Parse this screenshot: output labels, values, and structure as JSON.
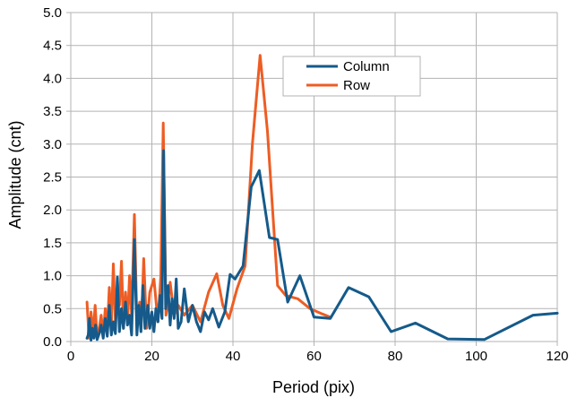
{
  "chart_data": {
    "type": "line",
    "title": "",
    "xlabel": "Period (pix)",
    "ylabel": "Amplitude (cnt)",
    "xlim": [
      0,
      120
    ],
    "ylim": [
      0,
      5
    ],
    "xticks": [
      0,
      20,
      40,
      60,
      80,
      100,
      120
    ],
    "xtick_labels": [
      "0",
      "20",
      "40",
      "60",
      "80",
      "100",
      "120"
    ],
    "yticks": [
      0,
      0.5,
      1,
      1.5,
      2,
      2.5,
      3,
      3.5,
      4,
      4.5,
      5
    ],
    "ytick_labels": [
      "0.0",
      "0.5",
      "1.0",
      "1.5",
      "2.0",
      "2.5",
      "3.0",
      "3.5",
      "4.0",
      "4.5",
      "5.0"
    ],
    "grid": true,
    "legend": {
      "position": "top-right"
    },
    "series": [
      {
        "name": "Column",
        "color": "#155a8a",
        "points": [
          [
            4.0,
            0.05
          ],
          [
            4.3,
            0.1
          ],
          [
            4.6,
            0.35
          ],
          [
            5.0,
            0.02
          ],
          [
            5.3,
            0.2
          ],
          [
            5.7,
            0.05
          ],
          [
            6.1,
            0.25
          ],
          [
            6.5,
            0.03
          ],
          [
            7.0,
            0.12
          ],
          [
            7.5,
            0.25
          ],
          [
            8.0,
            0.05
          ],
          [
            8.5,
            0.35
          ],
          [
            9.0,
            0.08
          ],
          [
            9.5,
            0.55
          ],
          [
            10.0,
            0.1
          ],
          [
            10.5,
            0.3
          ],
          [
            11.0,
            0.12
          ],
          [
            11.5,
            0.98
          ],
          [
            12.0,
            0.15
          ],
          [
            12.5,
            0.5
          ],
          [
            13.0,
            0.2
          ],
          [
            13.5,
            0.6
          ],
          [
            14.0,
            0.25
          ],
          [
            14.5,
            0.4
          ],
          [
            15.0,
            0.1
          ],
          [
            15.7,
            1.55
          ],
          [
            16.3,
            0.1
          ],
          [
            16.8,
            0.55
          ],
          [
            17.3,
            0.15
          ],
          [
            17.8,
            0.85
          ],
          [
            18.3,
            0.2
          ],
          [
            19.0,
            0.55
          ],
          [
            19.5,
            0.2
          ],
          [
            20.0,
            0.45
          ],
          [
            20.5,
            0.15
          ],
          [
            21.0,
            0.5
          ],
          [
            21.5,
            0.3
          ],
          [
            22.0,
            0.7
          ],
          [
            22.5,
            0.35
          ],
          [
            22.9,
            2.9
          ],
          [
            23.4,
            0.5
          ],
          [
            24.0,
            0.85
          ],
          [
            24.5,
            0.25
          ],
          [
            25.0,
            0.65
          ],
          [
            25.5,
            0.35
          ],
          [
            26.0,
            0.95
          ],
          [
            26.5,
            0.2
          ],
          [
            27.2,
            0.3
          ],
          [
            28.0,
            0.8
          ],
          [
            29.0,
            0.3
          ],
          [
            30.0,
            0.55
          ],
          [
            31.0,
            0.3
          ],
          [
            32.0,
            0.15
          ],
          [
            33.0,
            0.45
          ],
          [
            34.0,
            0.33
          ],
          [
            35.0,
            0.5
          ],
          [
            36.5,
            0.22
          ],
          [
            38.0,
            0.45
          ],
          [
            39.3,
            1.02
          ],
          [
            40.5,
            0.95
          ],
          [
            42.5,
            1.15
          ],
          [
            44.5,
            2.35
          ],
          [
            46.5,
            2.6
          ],
          [
            49.0,
            1.58
          ],
          [
            51.0,
            1.55
          ],
          [
            53.5,
            0.6
          ],
          [
            56.5,
            1.0
          ],
          [
            60.0,
            0.37
          ],
          [
            64.0,
            0.35
          ],
          [
            68.5,
            0.82
          ],
          [
            73.5,
            0.68
          ],
          [
            79.0,
            0.15
          ],
          [
            85.0,
            0.28
          ],
          [
            93.0,
            0.04
          ],
          [
            102.0,
            0.03
          ],
          [
            114.0,
            0.4
          ],
          [
            120.0,
            0.43
          ]
        ]
      },
      {
        "name": "Row",
        "color": "#ed5d24",
        "points": [
          [
            4.0,
            0.6
          ],
          [
            4.5,
            0.05
          ],
          [
            5.0,
            0.45
          ],
          [
            5.5,
            0.1
          ],
          [
            6.0,
            0.55
          ],
          [
            6.5,
            0.05
          ],
          [
            7.0,
            0.2
          ],
          [
            7.5,
            0.4
          ],
          [
            8.0,
            0.1
          ],
          [
            8.5,
            0.5
          ],
          [
            9.0,
            0.15
          ],
          [
            9.5,
            0.82
          ],
          [
            10.0,
            0.25
          ],
          [
            10.5,
            1.18
          ],
          [
            11.0,
            0.3
          ],
          [
            11.5,
            0.7
          ],
          [
            12.0,
            0.55
          ],
          [
            12.5,
            1.22
          ],
          [
            13.0,
            0.2
          ],
          [
            13.5,
            0.75
          ],
          [
            14.0,
            0.3
          ],
          [
            14.5,
            1.0
          ],
          [
            15.0,
            0.4
          ],
          [
            15.7,
            1.93
          ],
          [
            16.3,
            0.3
          ],
          [
            17.0,
            0.6
          ],
          [
            17.5,
            0.4
          ],
          [
            18.0,
            1.26
          ],
          [
            18.7,
            0.2
          ],
          [
            19.5,
            0.75
          ],
          [
            20.5,
            0.95
          ],
          [
            21.5,
            0.3
          ],
          [
            22.2,
            1.0
          ],
          [
            22.8,
            3.32
          ],
          [
            23.5,
            0.4
          ],
          [
            24.5,
            0.9
          ],
          [
            25.5,
            0.4
          ],
          [
            26.5,
            0.55
          ],
          [
            28.0,
            0.4
          ],
          [
            30.0,
            0.55
          ],
          [
            32.0,
            0.3
          ],
          [
            34.0,
            0.75
          ],
          [
            36.0,
            1.03
          ],
          [
            37.5,
            0.55
          ],
          [
            39.0,
            0.35
          ],
          [
            41.0,
            0.8
          ],
          [
            43.0,
            1.15
          ],
          [
            44.8,
            3.0
          ],
          [
            46.7,
            4.35
          ],
          [
            48.5,
            3.2
          ],
          [
            51.0,
            0.85
          ],
          [
            53.0,
            0.7
          ],
          [
            56.0,
            0.65
          ],
          [
            59.0,
            0.5
          ],
          [
            62.0,
            0.42
          ],
          [
            64.0,
            0.37
          ]
        ]
      }
    ]
  }
}
